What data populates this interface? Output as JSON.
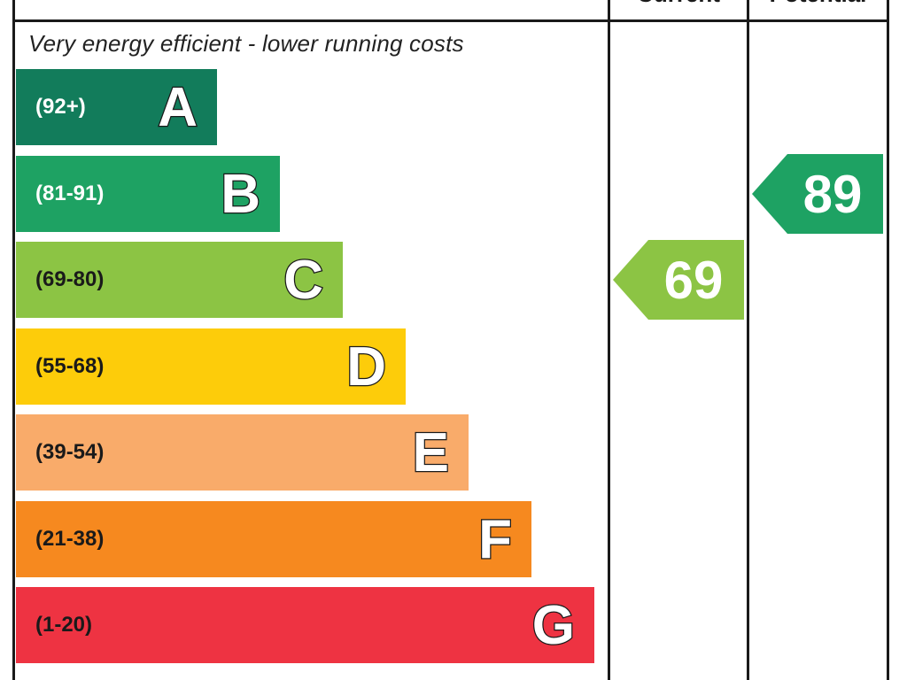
{
  "header": {
    "current_label": "Current",
    "potential_label": "Potential"
  },
  "top_caption": "Very energy efficient - lower running costs",
  "chart_data": {
    "type": "bar",
    "bands": [
      {
        "letter": "A",
        "range": "(92+)",
        "color": "#127c5b",
        "text_color": "#ffffff"
      },
      {
        "letter": "B",
        "range": "(81-91)",
        "color": "#1ea263",
        "text_color": "#ffffff"
      },
      {
        "letter": "C",
        "range": "(69-80)",
        "color": "#8cc444",
        "text_color": "#1a1a1a"
      },
      {
        "letter": "D",
        "range": "(55-68)",
        "color": "#fdcc0a",
        "text_color": "#1a1a1a"
      },
      {
        "letter": "E",
        "range": "(39-54)",
        "color": "#f9ab6a",
        "text_color": "#1a1a1a"
      },
      {
        "letter": "F",
        "range": "(21-38)",
        "color": "#f6891f",
        "text_color": "#1a1a1a"
      },
      {
        "letter": "G",
        "range": "(1-20)",
        "color": "#ee3342",
        "text_color": "#1a1a1a"
      }
    ],
    "current": {
      "value": "69",
      "band": "C",
      "color": "#8cc444"
    },
    "potential": {
      "value": "89",
      "band": "B",
      "color": "#1ea263"
    }
  }
}
